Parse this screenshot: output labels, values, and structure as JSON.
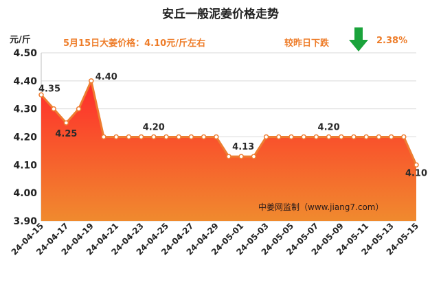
{
  "header": {
    "title": "安丘一般泥姜价格走势",
    "unit": "元/斤",
    "price_note": "5月15日大姜价格：4.10元/斤左右",
    "change_label": "较昨日下跌",
    "change_pct": "2.38%",
    "change_icon": "down-arrow-icon"
  },
  "watermark": "中姜网监制（www.jiang7.com）",
  "colors": {
    "line": "#ed7d31",
    "fill_top": "#ff2b2b",
    "fill_bottom": "#f08a2e",
    "accent_text": "#ee7d2a",
    "arrow": "#1aa33b"
  },
  "chart_data": {
    "type": "area",
    "title": "安丘一般泥姜价格走势",
    "ylabel": "元/斤",
    "xlabel": "",
    "ylim": [
      3.9,
      4.5
    ],
    "yticks": [
      "4.50",
      "4.40",
      "4.30",
      "4.20",
      "4.10",
      "4.00",
      "3.90"
    ],
    "grid": true,
    "x": [
      "24-04-15",
      "24-04-16",
      "24-04-17",
      "24-04-18",
      "24-04-19",
      "24-04-20",
      "24-04-21",
      "24-04-22",
      "24-04-23",
      "24-04-24",
      "24-04-25",
      "24-04-26",
      "24-04-27",
      "24-04-28",
      "24-04-29",
      "24-04-30",
      "24-05-01",
      "24-05-02",
      "24-05-03",
      "24-05-04",
      "24-05-05",
      "24-05-06",
      "24-05-07",
      "24-05-08",
      "24-05-09",
      "24-05-10",
      "24-05-11",
      "24-05-12",
      "24-05-13",
      "24-05-14",
      "24-05-15"
    ],
    "xtick_labels": [
      "24-04-15",
      "24-04-17",
      "24-04-19",
      "24-04-21",
      "24-04-23",
      "24-04-25",
      "24-04-27",
      "24-04-29",
      "24-05-01",
      "24-05-03",
      "24-05-05",
      "24-05-07",
      "24-05-09",
      "24-05-11",
      "24-05-13",
      "24-05-15"
    ],
    "series": [
      {
        "values": [
          4.35,
          4.3,
          4.25,
          4.3,
          4.4,
          4.2,
          4.2,
          4.2,
          4.2,
          4.2,
          4.2,
          4.2,
          4.2,
          4.2,
          4.2,
          4.13,
          4.13,
          4.13,
          4.2,
          4.2,
          4.2,
          4.2,
          4.2,
          4.2,
          4.2,
          4.2,
          4.2,
          4.2,
          4.2,
          4.2,
          4.1
        ]
      }
    ],
    "data_labels": [
      {
        "index": 0,
        "text": "4.35"
      },
      {
        "index": 2,
        "text": "4.25"
      },
      {
        "index": 4,
        "text": "4.40"
      },
      {
        "index": 9,
        "text": "4.20"
      },
      {
        "index": 16,
        "text": "4.13"
      },
      {
        "index": 23,
        "text": "4.20"
      },
      {
        "index": 30,
        "text": "4.10"
      }
    ]
  }
}
